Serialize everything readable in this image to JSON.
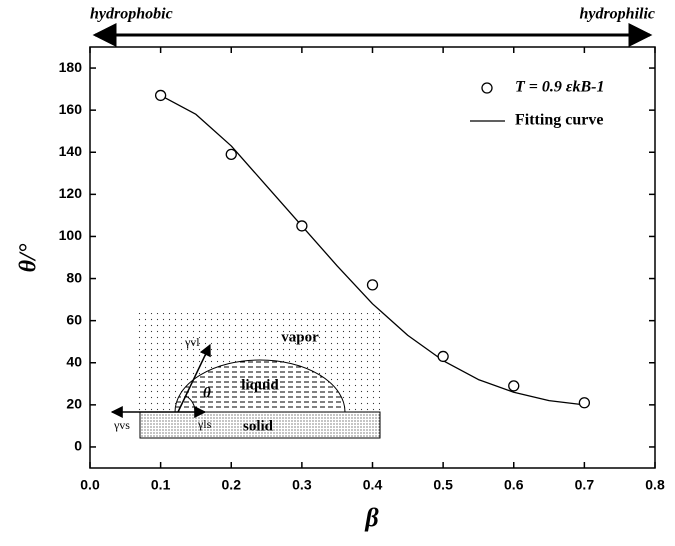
{
  "chart_data": {
    "type": "scatter",
    "annotations": {
      "left": "hydrophobic",
      "right": "hydrophilic"
    },
    "x_label": "β",
    "y_label": "θ/°",
    "xlim": [
      0,
      0.8
    ],
    "ylim": [
      -10,
      190
    ],
    "xticks": [
      {
        "value": 0,
        "label": "0.0"
      },
      0.1,
      0.2,
      0.3,
      0.4,
      0.5,
      0.6,
      0.7,
      0.8
    ],
    "yticks": [
      0,
      20,
      40,
      60,
      80,
      100,
      120,
      140,
      160,
      180
    ],
    "legend": "upper right",
    "series": [
      {
        "name": "T = 0.9 εkB-1",
        "type": "scatter",
        "color": "#000000",
        "x": [
          0.1,
          0.2,
          0.3,
          0.4,
          0.5,
          0.6,
          0.7
        ],
        "values": [
          167,
          139,
          105,
          77,
          43,
          29,
          21
        ]
      },
      {
        "name": "Fitting curve",
        "type": "line",
        "color": "#000000",
        "x": [
          0.1,
          0.15,
          0.2,
          0.25,
          0.3,
          0.35,
          0.4,
          0.45,
          0.5,
          0.55,
          0.6,
          0.65,
          0.7
        ],
        "values": [
          167,
          158,
          143,
          124,
          105,
          86,
          68,
          53,
          41,
          32,
          26,
          22,
          20
        ]
      }
    ],
    "inset_labels": {
      "vapor": "vapor",
      "liquid": "liquid",
      "solid": "solid",
      "gamma_vl": "γvl",
      "gamma_ls": "γls",
      "gamma_vs": "γvs",
      "theta": "θ"
    }
  }
}
